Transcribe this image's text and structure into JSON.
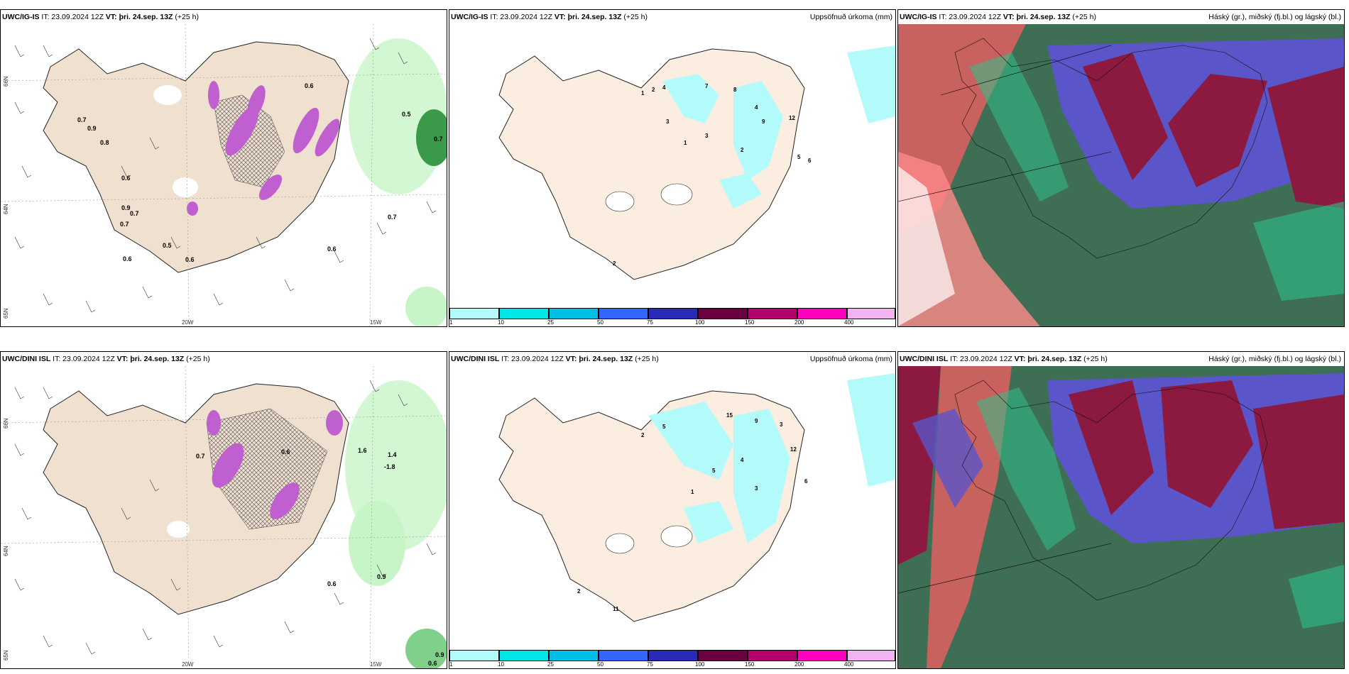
{
  "panels": {
    "p1": {
      "left": "UWC/IG-IS",
      "it": "IT: 23.09.2024 12Z",
      "vt": "VT: þri. 24.sep. 13Z",
      "lead": "(+25 h)"
    },
    "p2": {
      "left": "UWC/IG-IS",
      "it": "IT: 23.09.2024 12Z",
      "vt": "VT: þri. 24.sep. 13Z",
      "lead": "(+25 h)",
      "right": "Uppsöfnuð úrkoma (mm)"
    },
    "p3": {
      "left": "UWC/IG-IS",
      "it": "IT: 23.09.2024 12Z",
      "vt": "VT: þri. 24.sep. 13Z",
      "lead": "(+25 h)",
      "right": "Háský (gr.), miðský (fj.bl.) og lágský (bl.)"
    },
    "p4": {
      "left": "UWC/DINI ISL",
      "it": "IT: 23.09.2024 12Z",
      "vt": "VT: þri. 24.sep. 13Z",
      "lead": "(+25 h)"
    },
    "p5": {
      "left": "UWC/DINI ISL",
      "it": "IT: 23.09.2024 12Z",
      "vt": "VT: þri. 24.sep. 13Z",
      "lead": "(+25 h)",
      "right": "Uppsöfnuð úrkoma (mm)"
    },
    "p6": {
      "left": "UWC/DINI ISL",
      "it": "IT: 23.09.2024 12Z",
      "vt": "VT: þri. 24.sep. 13Z",
      "lead": "(+25 h)",
      "right": "Háský (gr.), miðský (fj.bl.) og lágský (bl.)"
    }
  },
  "axes": {
    "lat66": "66N",
    "lat64": "64N",
    "lat65": "65N",
    "lon20": "20W",
    "lon15": "15W"
  },
  "colorbar": {
    "ticks": [
      "1",
      "10",
      "25",
      "50",
      "75",
      "100",
      "150",
      "200",
      "400"
    ],
    "colors": [
      "#b3fafa",
      "#00e6e6",
      "#00bfe6",
      "#3366ff",
      "#2a2ab8",
      "#6b0040",
      "#b3006b",
      "#ff00bf",
      "#f2b3f2"
    ]
  },
  "labels": {
    "p1": [
      "0.7",
      "0.9",
      "0.8",
      "0.6",
      "0.9",
      "0.7",
      "0.7",
      "0.6",
      "0.5",
      "0.6",
      "0.6",
      "0.5",
      "0.7",
      "0.7",
      "0.6"
    ],
    "p2": [
      "1",
      "2",
      "4",
      "3",
      "7",
      "8",
      "4",
      "2",
      "1",
      "3",
      "12",
      "5",
      "6",
      "9",
      "2"
    ],
    "p4": [
      "0.7",
      "0.6",
      "1.4",
      "1.6",
      "-1.8",
      "0.6",
      "0.9",
      "0.9",
      "0.6"
    ],
    "p5": [
      "2",
      "5",
      "15",
      "9",
      "3",
      "12",
      "6",
      "4",
      "1",
      "3",
      "11",
      "2",
      "5"
    ]
  }
}
